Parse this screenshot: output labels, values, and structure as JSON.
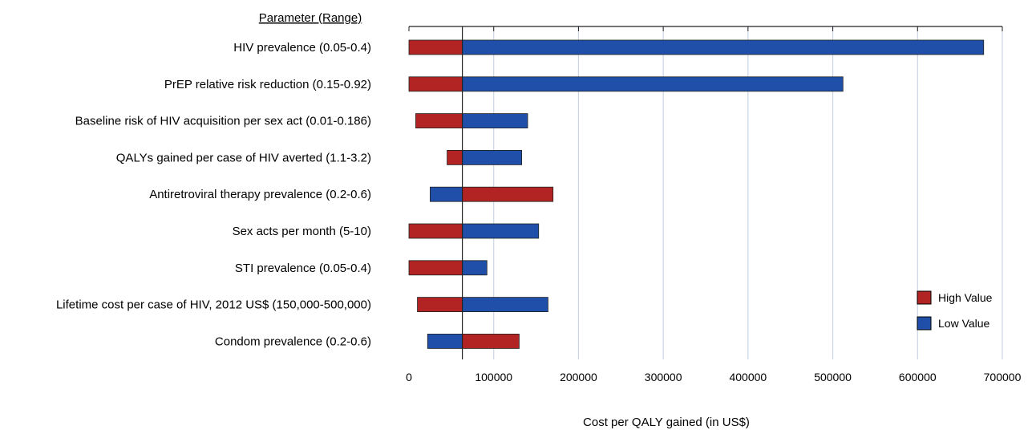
{
  "chart_data": {
    "type": "bar",
    "orientation": "horizontal",
    "variant": "tornado",
    "header": "Parameter (Range)",
    "xlabel": "Cost per QALY gained (in US$)",
    "xlim": [
      0,
      700000
    ],
    "x_ticks": [
      0,
      100000,
      200000,
      300000,
      400000,
      500000,
      600000,
      700000
    ],
    "x_tick_labels": [
      "0",
      "100000",
      "200000",
      "300000",
      "400000",
      "500000",
      "600000",
      "700000"
    ],
    "base_value": 63000,
    "grid": "vertical",
    "legend_position": "bottom-right",
    "categories": [
      "HIV prevalence (0.05-0.4)",
      "PrEP relative risk reduction (0.15-0.92)",
      "Baseline risk of HIV acquisition per sex act (0.01-0.186)",
      "QALYs gained per case of HIV averted (1.1-3.2)",
      "Antiretroviral therapy prevalence (0.2-0.6)",
      "Sex acts per month (5-10)",
      "STI prevalence (0.05-0.4)",
      "Lifetime cost per case of HIV, 2012 US$ (150,000-500,000)",
      "Condom prevalence (0.2-0.6)"
    ],
    "series": [
      {
        "name": "High Value",
        "color": "#b22424",
        "values": [
          0,
          0,
          8000,
          45000,
          170000,
          0,
          0,
          10000,
          130000
        ]
      },
      {
        "name": "Low Value",
        "color": "#1f4fa8",
        "values": [
          678000,
          512000,
          140000,
          133000,
          25000,
          153000,
          92000,
          164000,
          22000
        ]
      }
    ]
  }
}
